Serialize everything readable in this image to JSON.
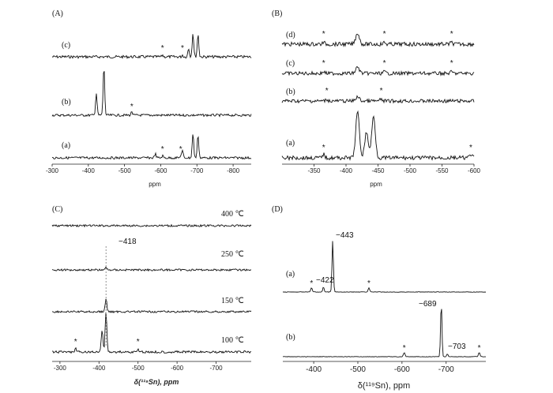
{
  "chart_data": [
    {
      "panel": "(A)",
      "type": "line",
      "xlabel": "ppm",
      "xlim": [
        -300,
        -850
      ],
      "xticks": [
        "-300",
        "-400",
        "-500",
        "-600",
        "-700",
        "-800"
      ],
      "traces": [
        {
          "label": "(c)",
          "peaks": [
            {
              "ppm": -689,
              "height": 1.0
            },
            {
              "ppm": -703,
              "height": 0.95
            },
            {
              "ppm": -677,
              "height": 0.35
            }
          ],
          "stars": [
            -605,
            -660
          ]
        },
        {
          "label": "(b)",
          "peaks": [
            {
              "ppm": -443,
              "height": 1.0
            },
            {
              "ppm": -422,
              "height": 0.45
            }
          ],
          "stars": [
            -520
          ]
        },
        {
          "label": "(a)",
          "peaks": [
            {
              "ppm": -689,
              "height": 0.9
            },
            {
              "ppm": -703,
              "height": 0.85
            },
            {
              "ppm": -660,
              "height": 0.25
            },
            {
              "ppm": -585,
              "height": 0.15
            }
          ],
          "stars": [
            -605,
            -655
          ]
        }
      ]
    },
    {
      "panel": "(B)",
      "type": "line",
      "xlabel": "ppm",
      "xlim": [
        -300,
        -600
      ],
      "xticks": [
        "-350",
        "-400",
        "-450",
        "-500",
        "-550",
        "-600"
      ],
      "traces": [
        {
          "label": "(d)",
          "peaks": [
            {
              "ppm": -418,
              "height": 0.55
            }
          ],
          "stars": [
            -365,
            -460,
            -565
          ]
        },
        {
          "label": "(c)",
          "peaks": [
            {
              "ppm": -418,
              "height": 0.3
            }
          ],
          "stars": [
            -365,
            -460,
            -565
          ]
        },
        {
          "label": "(b)",
          "peaks": [
            {
              "ppm": -418,
              "height": 0.2
            }
          ],
          "stars": [
            -370,
            -455
          ]
        },
        {
          "label": "(a)",
          "peaks": [
            {
              "ppm": -418,
              "height": 1.0
            },
            {
              "ppm": -443,
              "height": 0.9
            },
            {
              "ppm": -432,
              "height": 0.55
            }
          ],
          "stars": [
            -365,
            -595
          ]
        }
      ]
    },
    {
      "panel": "(C)",
      "type": "line",
      "xlabel": "δ(¹¹⁹Sn), ppm",
      "xlim": [
        -280,
        -790
      ],
      "xticks": [
        "-300",
        "-400",
        "-500",
        "-600",
        "-700"
      ],
      "annotation": "−418",
      "traces": [
        {
          "label": "400 ℃",
          "peaks": [],
          "stars": []
        },
        {
          "label": "250 ℃",
          "peaks": [
            {
              "ppm": -418,
              "height": 0.1
            }
          ],
          "stars": []
        },
        {
          "label": "150 ℃",
          "peaks": [
            {
              "ppm": -418,
              "height": 0.55
            }
          ],
          "stars": []
        },
        {
          "label": "100 ℃",
          "peaks": [
            {
              "ppm": -418,
              "height": 1.0
            },
            {
              "ppm": -408,
              "height": 0.55
            }
          ],
          "stars": [
            -340,
            -500
          ]
        }
      ]
    },
    {
      "panel": "(D)",
      "type": "line",
      "xlabel": "δ(¹¹⁹Sn), ppm",
      "xlim": [
        -330,
        -790
      ],
      "xticks": [
        "-400",
        "-500",
        "-600",
        "-700"
      ],
      "traces": [
        {
          "label": "(a)",
          "peaks": [
            {
              "ppm": -443,
              "height": 1.0
            },
            {
              "ppm": -422,
              "height": 0.1
            }
          ],
          "stars": [
            -395,
            -525
          ],
          "annotations": [
            "−443",
            "−422"
          ]
        },
        {
          "label": "(b)",
          "peaks": [
            {
              "ppm": -689,
              "height": 1.0
            },
            {
              "ppm": -703,
              "height": 0.05
            }
          ],
          "stars": [
            -605,
            -775
          ],
          "annotations": [
            "−689",
            "−703"
          ]
        }
      ]
    }
  ],
  "labels": {
    "A": "(A)",
    "B": "(B)",
    "C": "(C)",
    "D": "(D)",
    "ppm": "ppm",
    "deltaC": "δ(¹¹⁹Sn), ppm",
    "deltaD": "δ(¹¹⁹Sn), ppm",
    "star": "*",
    "a": "(a)",
    "b": "(b)",
    "c": "(c)",
    "d": "(d)",
    "t400": "400 ℃",
    "t250": "250 ℃",
    "t150": "150 ℃",
    "t100": "100 ℃",
    "n418": "−418",
    "n443": "−443",
    "n422": "−422",
    "n689": "−689",
    "n703": "−703"
  }
}
